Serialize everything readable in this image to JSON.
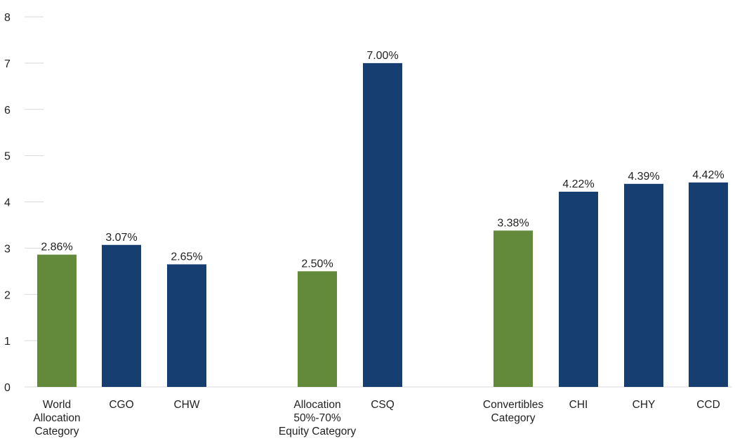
{
  "chart_data": {
    "type": "bar",
    "title": "",
    "xlabel": "",
    "ylabel": "",
    "ylim": [
      0,
      8
    ],
    "yticks": [
      0,
      1,
      2,
      3,
      4,
      5,
      6,
      7,
      8
    ],
    "grid": false,
    "legend": "none",
    "colors": {
      "category": "#638a3b",
      "fund": "#173e70"
    },
    "bars": [
      {
        "label": [
          "World",
          "Allocation",
          "Category"
        ],
        "value": 2.86,
        "value_label": "2.86%",
        "kind": "category"
      },
      {
        "label": [
          "CGO"
        ],
        "value": 3.07,
        "value_label": "3.07%",
        "kind": "fund"
      },
      {
        "label": [
          "CHW"
        ],
        "value": 2.65,
        "value_label": "2.65%",
        "kind": "fund"
      },
      {
        "label": [
          "Allocation",
          "50%-70%",
          "Equity Category"
        ],
        "value": 2.5,
        "value_label": "2.50%",
        "kind": "category"
      },
      {
        "label": [
          "CSQ"
        ],
        "value": 7.0,
        "value_label": "7.00%",
        "kind": "fund"
      },
      {
        "label": [
          "Convertibles",
          "Category"
        ],
        "value": 3.38,
        "value_label": "3.38%",
        "kind": "category"
      },
      {
        "label": [
          "CHI"
        ],
        "value": 4.22,
        "value_label": "4.22%",
        "kind": "fund"
      },
      {
        "label": [
          "CHY"
        ],
        "value": 4.39,
        "value_label": "4.39%",
        "kind": "fund"
      },
      {
        "label": [
          "CCD"
        ],
        "value": 4.42,
        "value_label": "4.42%",
        "kind": "fund"
      }
    ]
  }
}
